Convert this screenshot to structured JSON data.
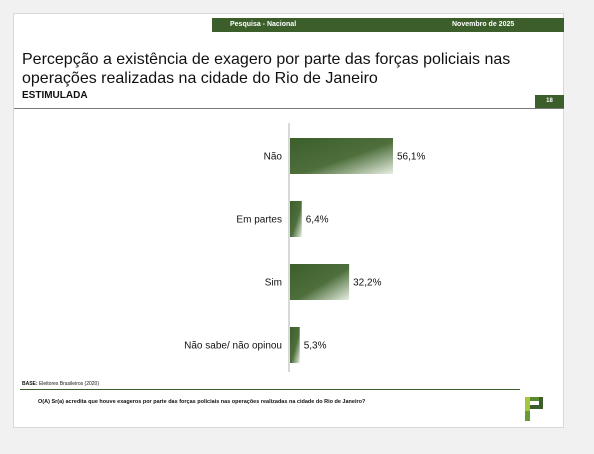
{
  "header": {
    "left_label": "Pesquisa - Nacional",
    "right_label": "Novembro de 2025",
    "title": "Percepção a existência de exagero por parte das forças policiais nas operações realizadas na cidade do Rio de Janeiro",
    "subtitle": "ESTIMULADA",
    "page_number": "18"
  },
  "footer": {
    "base_label": "BASE:",
    "base_text": "Eleitores Brasileiros (2020)",
    "question": "O(A) Sr(a) acredita que houve exageros por parte das forças policiais nas operações realizadas na cidade do Rio de Janeiro?"
  },
  "colors": {
    "brand_dark": "#3b5e2b",
    "bar_light": "#e8efe2",
    "logo_light": "#a4c83c"
  },
  "chart_data": {
    "type": "bar",
    "orientation": "horizontal",
    "categories": [
      "Não",
      "Em partes",
      "Sim",
      "Não sabe/ não opinou"
    ],
    "values": [
      56.1,
      6.4,
      32.2,
      5.3
    ],
    "value_labels": [
      "56,1%",
      "6,4%",
      "32,2%",
      "5,3%"
    ],
    "xlim": [
      0,
      56.1
    ],
    "grid": false,
    "legend": "none"
  }
}
